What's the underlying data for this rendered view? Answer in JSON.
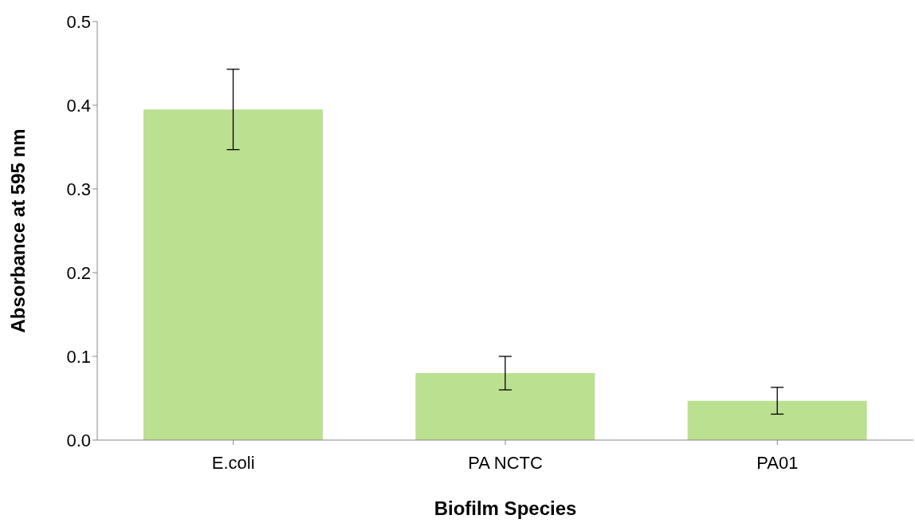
{
  "chart_data": {
    "type": "bar",
    "xlabel": "Biofilm Species",
    "ylabel": "Absorbance at 595 nm",
    "categories": [
      "E.coli",
      "PA NCTC",
      "PA01"
    ],
    "values": [
      0.395,
      0.08,
      0.047
    ],
    "errors": [
      0.048,
      0.02,
      0.016
    ],
    "color": "#bbe090",
    "ylim": [
      0,
      0.5
    ],
    "yticks": [
      {
        "value": 0,
        "label": "0.0"
      },
      0.1,
      0.2,
      0.3,
      0.4,
      0.5
    ],
    "grid": false,
    "legend": false
  }
}
